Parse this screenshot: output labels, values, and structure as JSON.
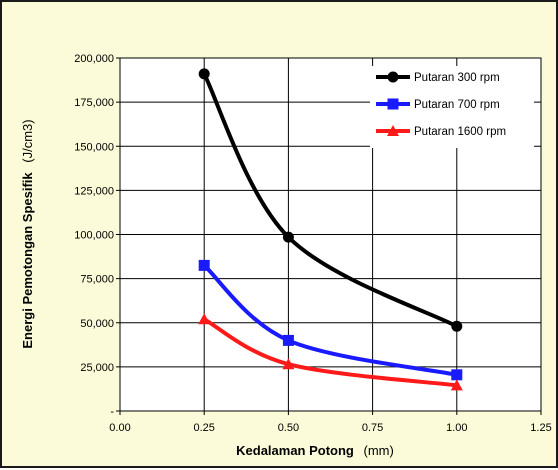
{
  "chart_data": {
    "type": "line",
    "xlabel_main": "Kedalaman  Potong",
    "xlabel_unit": "(mm)",
    "ylabel_main": "Energi Pemotongan Spesifik",
    "ylabel_unit": "(J/cm3)",
    "xlim": [
      0,
      1.25
    ],
    "ylim": [
      0,
      200000
    ],
    "x_ticks": [
      0,
      0.25,
      0.5,
      0.75,
      1.0,
      1.25
    ],
    "x_tick_labels": [
      "0.00",
      "0.25",
      "0.50",
      "0.75",
      "1.00",
      "1.25"
    ],
    "y_ticks": [
      0,
      25000,
      50000,
      75000,
      100000,
      125000,
      150000,
      175000,
      200000
    ],
    "y_tick_labels": [
      "-",
      "25,000",
      "50,000",
      "75,000",
      "100,000",
      "125,000",
      "150,000",
      "175,000",
      "200,000"
    ],
    "grid": true,
    "legend_position": "top-right",
    "series": [
      {
        "name": "Putaran 300 rpm",
        "color": "#000000",
        "marker": "circle",
        "x": [
          0.25,
          0.5,
          1.0
        ],
        "y": [
          191000,
          98500,
          48000
        ]
      },
      {
        "name": "Putaran 700 rpm",
        "color": "#1a1aff",
        "marker": "square",
        "x": [
          0.25,
          0.5,
          1.0
        ],
        "y": [
          82500,
          40000,
          20500
        ]
      },
      {
        "name": "Putaran 1600 rpm",
        "color": "#ff1a1a",
        "marker": "triangle",
        "x": [
          0.25,
          0.5,
          1.0
        ],
        "y": [
          52000,
          26500,
          14500
        ]
      }
    ]
  }
}
